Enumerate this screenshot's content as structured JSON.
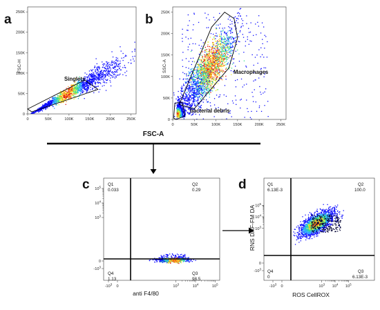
{
  "chart_data": [
    {
      "panel": "a",
      "type": "scatter",
      "xlabel": "FSC-A",
      "ylabel": "FSC-H",
      "xlim": [
        0,
        262144
      ],
      "ylim": [
        0,
        262144
      ],
      "x_ticks": [
        "0",
        "50K",
        "100K",
        "150K",
        "200K",
        "250K"
      ],
      "y_ticks": [
        "0",
        "50K",
        "100K",
        "150K",
        "200K",
        "250K"
      ],
      "gates": [
        {
          "name": "Singlets",
          "shape": "polygon",
          "vertices": [
            [
              0,
              12000
            ],
            [
              10000,
              5000
            ],
            [
              170000,
              60000
            ],
            [
              138000,
              83000
            ]
          ]
        }
      ],
      "populations": [
        {
          "description": "singlet diagonal",
          "center": [
            95000,
            60000
          ],
          "spread": [
            25000,
            12000
          ],
          "density": "high"
        }
      ]
    },
    {
      "panel": "b",
      "type": "scatter",
      "xlabel": "FSC-A",
      "ylabel": "SSC-A",
      "xlim": [
        0,
        262144
      ],
      "ylim": [
        0,
        262144
      ],
      "x_ticks": [
        "0",
        "50K",
        "100K",
        "150K",
        "200K",
        "250K"
      ],
      "y_ticks": [
        "0",
        "50K",
        "100K",
        "150K",
        "200K",
        "250K"
      ],
      "gates": [
        {
          "name": "Macrophages",
          "shape": "polygon",
          "vertices": [
            [
              15000,
              35000
            ],
            [
              90000,
              215000
            ],
            [
              120000,
              250000
            ],
            [
              142000,
              235000
            ],
            [
              150000,
              190000
            ],
            [
              130000,
              120000
            ],
            [
              50000,
              25000
            ]
          ]
        },
        {
          "name": "bacterial debris",
          "shape": "polygon",
          "vertices": [
            [
              2000,
              3000
            ],
            [
              5000,
              38000
            ],
            [
              22000,
              40000
            ],
            [
              28000,
              8000
            ],
            [
              8000,
              0
            ]
          ]
        }
      ],
      "populations": [
        {
          "description": "macrophages",
          "center": [
            100000,
            120000
          ],
          "spread": [
            30000,
            38000
          ],
          "density": "high"
        },
        {
          "description": "bacterial debris",
          "center": [
            12000,
            20000
          ],
          "spread": [
            7000,
            10000
          ],
          "density": "high"
        }
      ]
    },
    {
      "panel": "c",
      "type": "scatter",
      "xlabel": "anti F4/80",
      "ylabel": "",
      "x_scale": "biexponential",
      "y_scale": "biexponential",
      "x_ticks": [
        "-10^3",
        "0",
        "10^3",
        "10^4",
        "10^5"
      ],
      "y_ticks": [
        "-10^3",
        "0",
        "10^3",
        "10^4",
        "10^5"
      ],
      "quadrants": {
        "Q1": {
          "label": "Q1",
          "value": "0.033"
        },
        "Q2": {
          "label": "Q2",
          "value": "0.29"
        },
        "Q3": {
          "label": "Q3",
          "value": "98.5"
        },
        "Q4": {
          "label": "Q4",
          "value": "1.13"
        }
      }
    },
    {
      "panel": "d",
      "type": "scatter",
      "xlabel": "ROS CellROX",
      "ylabel": "RNS DAF-FM DA",
      "x_scale": "biexponential",
      "y_scale": "biexponential",
      "x_ticks": [
        "-10^3",
        "0",
        "10^3",
        "10^4",
        "10^5"
      ],
      "y_ticks": [
        "-10^3",
        "0",
        "10^3",
        "10^4",
        "10^5"
      ],
      "quadrants": {
        "Q1": {
          "label": "Q1",
          "value": "6.13E-3"
        },
        "Q2": {
          "label": "Q2",
          "value": "100.0"
        },
        "Q3": {
          "label": "Q3",
          "value": "6.13E-3"
        },
        "Q4": {
          "label": "Q4",
          "value": "0"
        }
      }
    }
  ],
  "shared_xlabel": "FSC-A",
  "panel_letters": [
    "a",
    "b",
    "c",
    "d"
  ],
  "density_colors": [
    "#0a0aff",
    "#2aa8ff",
    "#33e08a",
    "#f1f12c",
    "#ff8a1a",
    "#e01010"
  ],
  "gate_color": "#000000"
}
